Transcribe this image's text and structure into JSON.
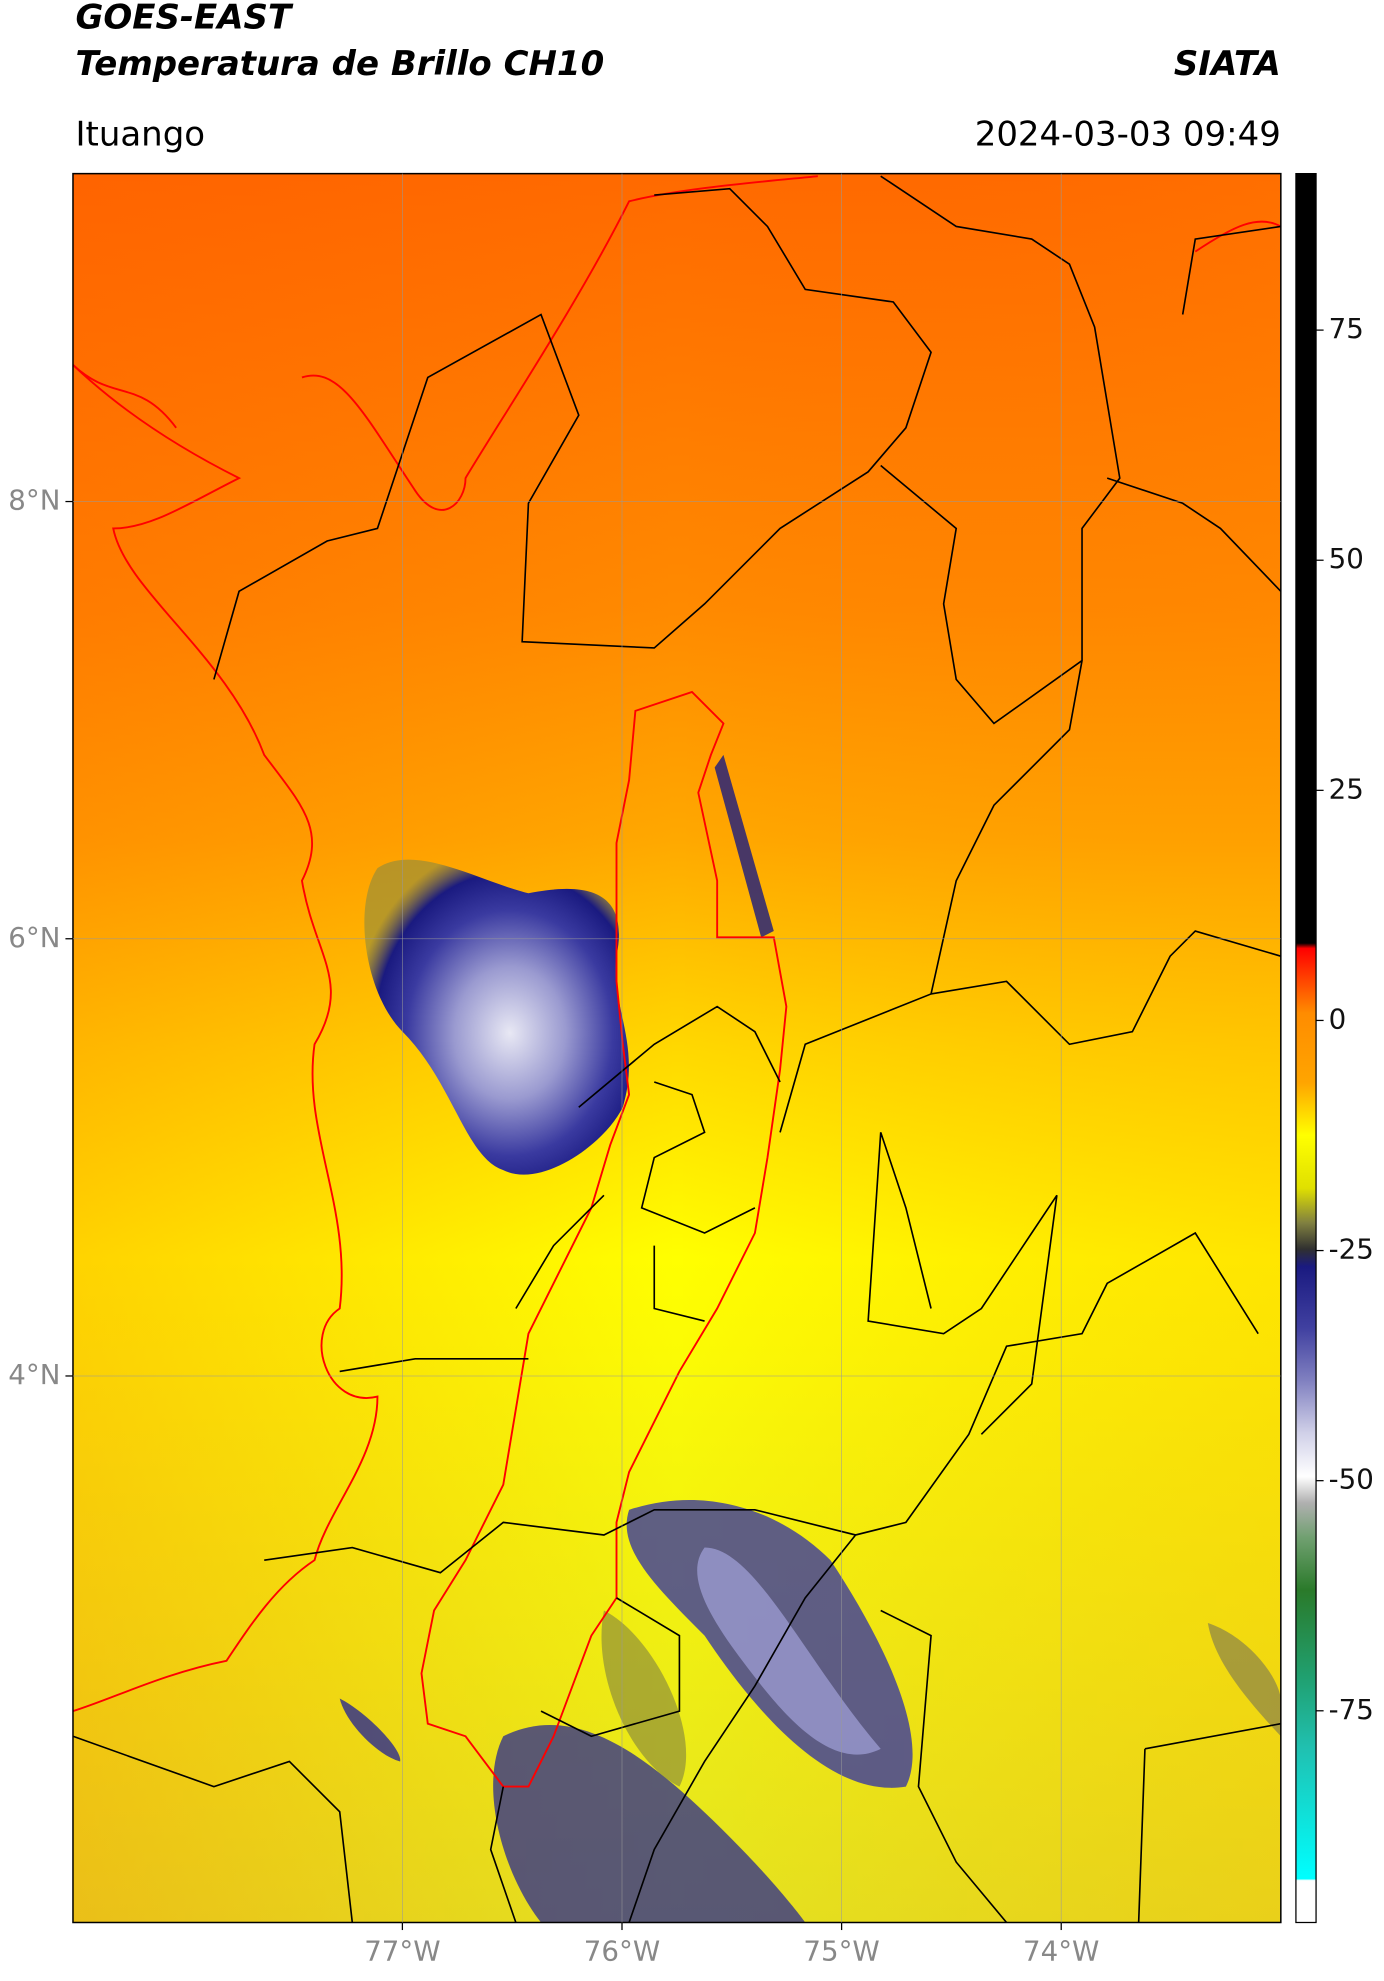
{
  "header": {
    "title": "GOES-EAST",
    "subtitle": "Temperatura de Brillo CH10",
    "source": "SIATA",
    "location": "Ituango",
    "datetime": "2024-03-03 09:49"
  },
  "map": {
    "xlim": [
      -78.5,
      -73
    ],
    "ylim": [
      1.5,
      9.5
    ],
    "xticks": [
      {
        "value": -77,
        "label": "77°W"
      },
      {
        "value": -76,
        "label": "76°W"
      },
      {
        "value": -75,
        "label": "75°W"
      },
      {
        "value": -74,
        "label": "74°W"
      }
    ],
    "yticks": [
      {
        "value": 8,
        "label": "8°N"
      },
      {
        "value": 6,
        "label": "6°N"
      },
      {
        "value": 4,
        "label": "4°N"
      }
    ],
    "grid": true
  },
  "colorbar": {
    "clim": [
      -98,
      92
    ],
    "ticks": [
      75,
      50,
      25,
      0,
      -25,
      -50,
      -75
    ]
  }
}
